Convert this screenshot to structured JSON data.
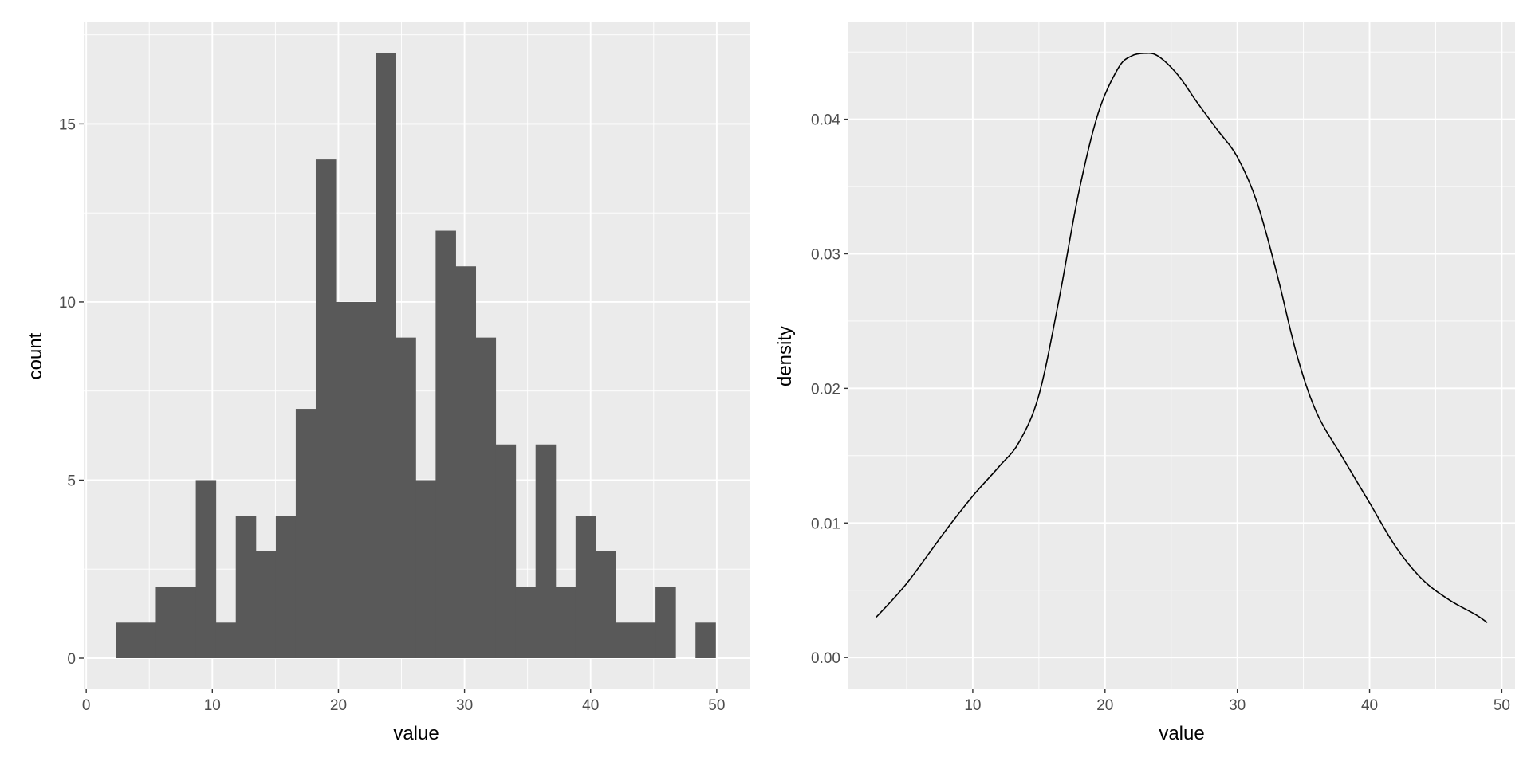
{
  "chart_data": [
    {
      "type": "bar",
      "subtype": "histogram",
      "xlabel": "value",
      "ylabel": "count",
      "xlim": [
        -0.2,
        52.6
      ],
      "ylim": [
        -0.85,
        17.85
      ],
      "x_ticks": [
        0,
        10,
        20,
        30,
        40,
        50
      ],
      "y_ticks": [
        0,
        5,
        10,
        15
      ],
      "bin_width": 1.585,
      "bin_start": 2.35,
      "counts": [
        1,
        1,
        2,
        2,
        5,
        1,
        4,
        3,
        4,
        7,
        14,
        10,
        10,
        17,
        9,
        5,
        12,
        11,
        9,
        6,
        2,
        6,
        2,
        4,
        3,
        1,
        1,
        2,
        0,
        1
      ],
      "bar_color": "#595959",
      "panel_bg": "#ebebeb",
      "grid": true
    },
    {
      "type": "line",
      "subtype": "density",
      "xlabel": "value",
      "ylabel": "density",
      "xlim": [
        0.6,
        51.0
      ],
      "ylim": [
        -0.0023,
        0.0472
      ],
      "x_ticks": [
        10,
        20,
        30,
        40,
        50
      ],
      "y_ticks": [
        0.0,
        0.01,
        0.02,
        0.03,
        0.04
      ],
      "y_tick_labels": [
        "0.00",
        "0.01",
        "0.02",
        "0.03",
        "0.04"
      ],
      "x": [
        2.7,
        5,
        8,
        10,
        12,
        13.5,
        15,
        16.5,
        18,
        19.5,
        21,
        22,
        23,
        24,
        25.5,
        27,
        28.5,
        30,
        31.5,
        33,
        34.5,
        36,
        38,
        40,
        42,
        44,
        46,
        48,
        48.9
      ],
      "y": [
        0.003,
        0.0055,
        0.0095,
        0.012,
        0.0142,
        0.016,
        0.0195,
        0.0265,
        0.0345,
        0.0405,
        0.0438,
        0.0447,
        0.0449,
        0.0447,
        0.0433,
        0.0412,
        0.0392,
        0.0372,
        0.0338,
        0.0285,
        0.0225,
        0.0182,
        0.0148,
        0.0115,
        0.0082,
        0.0058,
        0.0043,
        0.0032,
        0.0026
      ],
      "line_color": "#000000",
      "panel_bg": "#ebebeb",
      "grid": true
    }
  ]
}
